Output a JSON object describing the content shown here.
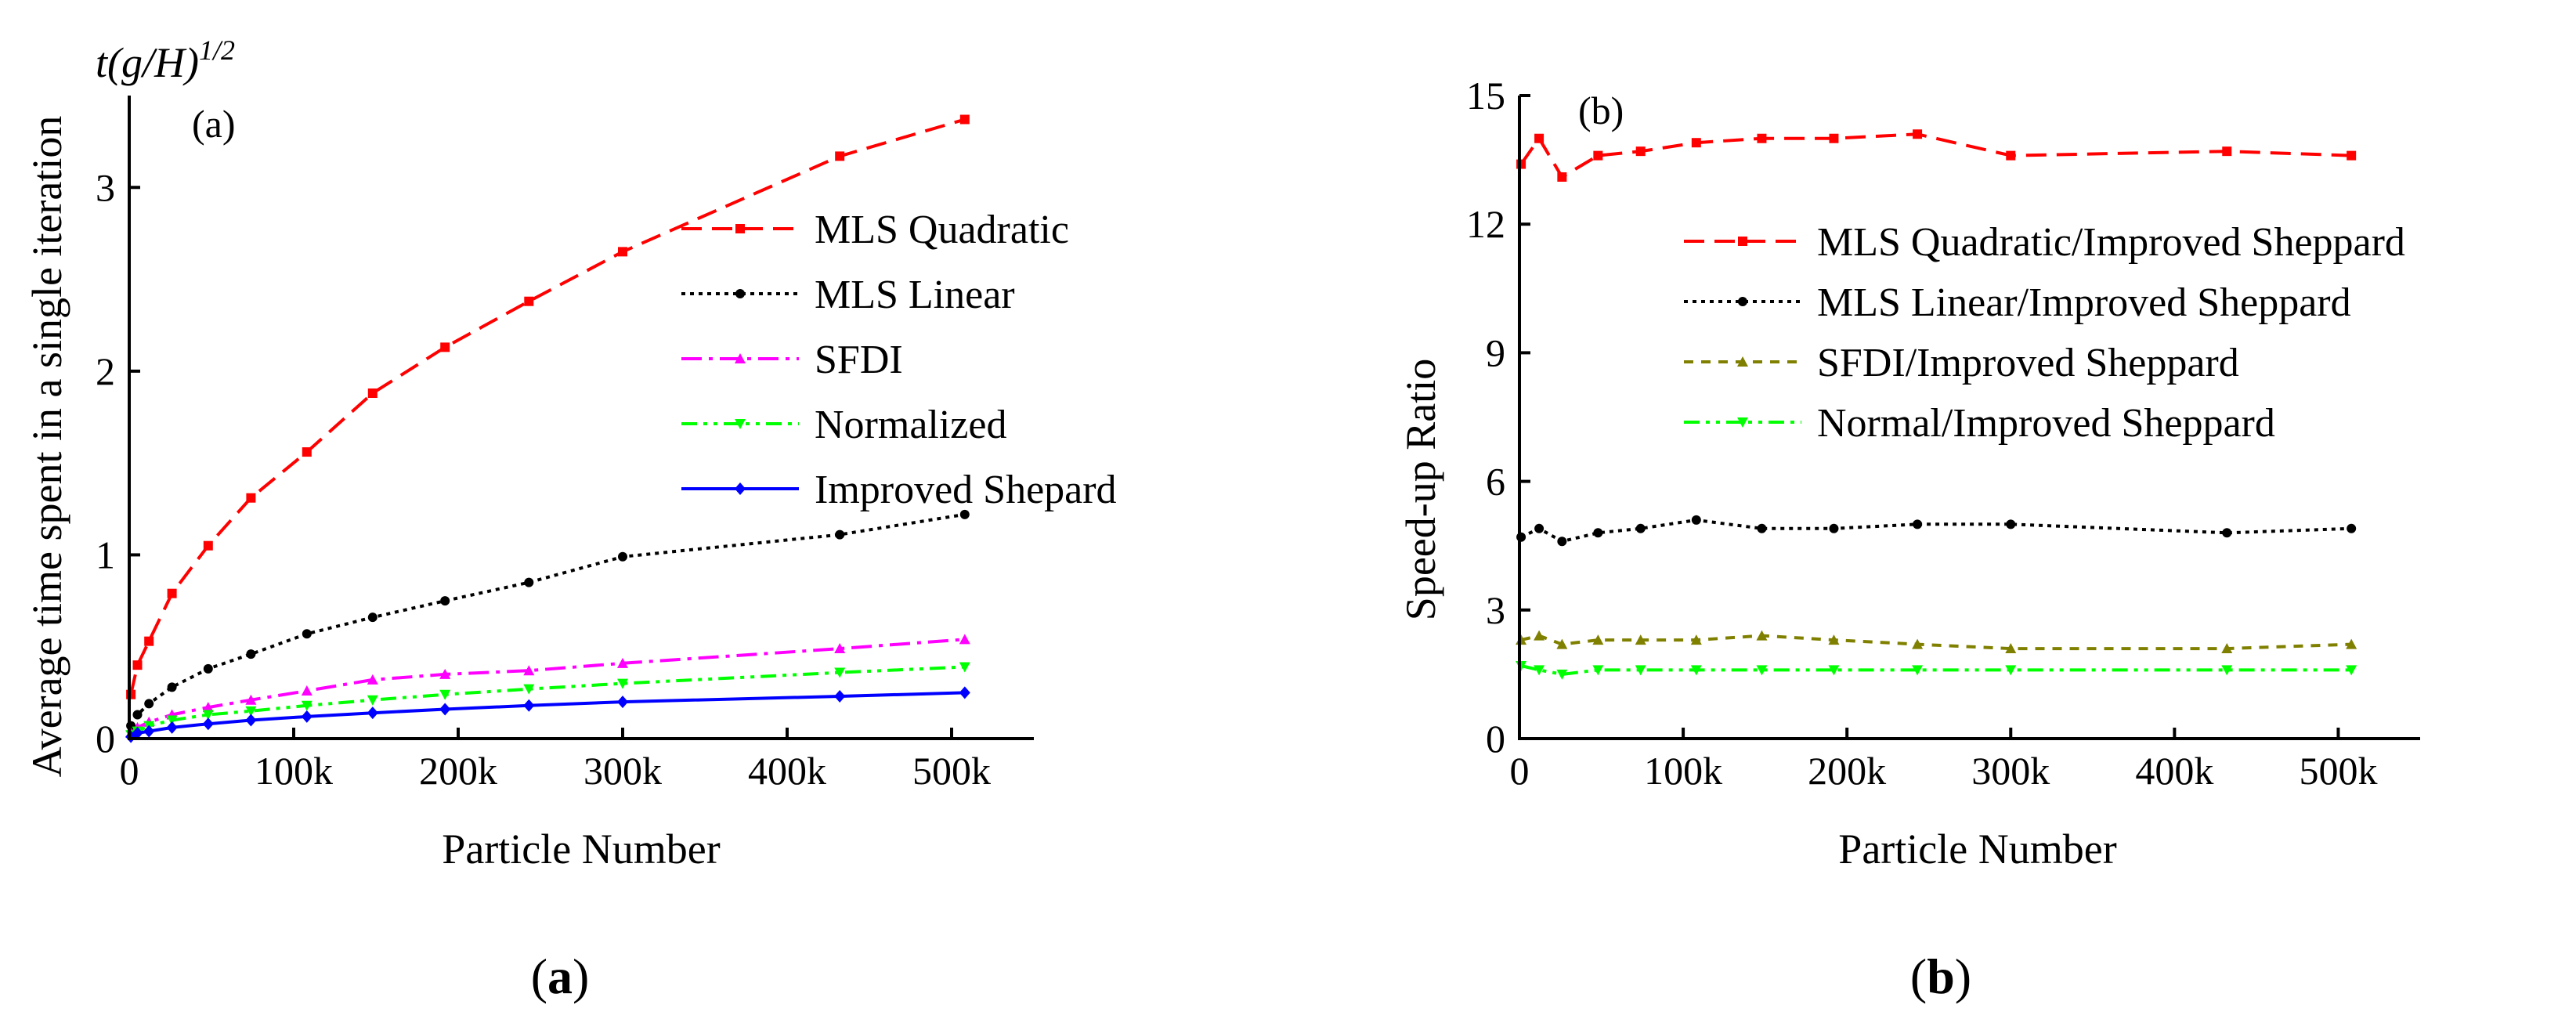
{
  "chart_data": [
    {
      "type": "line",
      "panel_tag": "(a)",
      "caption_letter": "a",
      "ylabel": "Average time spent in a single iteration",
      "ylabel_unit_main": "t(g/H)",
      "ylabel_unit_exp": "1/2",
      "xlabel": "Particle Number",
      "xlim": [
        0,
        550000
      ],
      "ylim": [
        0,
        3.5
      ],
      "xticks": [
        0,
        100000,
        200000,
        300000,
        400000,
        500000
      ],
      "xtick_labels": [
        "0",
        "100k",
        "200k",
        "300k",
        "400k",
        "500k"
      ],
      "yticks": [
        0,
        1,
        2,
        3
      ],
      "ytick_labels": [
        "0",
        "1",
        "2",
        "3"
      ],
      "legend_position": "center-right",
      "series": [
        {
          "name": "MLS Quadratic",
          "color": "#ff0000",
          "dash": "dashed",
          "marker": "square",
          "x": [
            1000,
            5000,
            12000,
            26000,
            48000,
            74000,
            108000,
            148000,
            192000,
            243000,
            300000,
            432000,
            508000
          ],
          "values": [
            0.24,
            0.4,
            0.53,
            0.79,
            1.05,
            1.31,
            1.56,
            1.88,
            2.13,
            2.38,
            2.65,
            3.17,
            3.37
          ]
        },
        {
          "name": "MLS Linear",
          "color": "#000000",
          "dash": "dotted",
          "marker": "circle",
          "x": [
            1000,
            5000,
            12000,
            26000,
            48000,
            74000,
            108000,
            148000,
            192000,
            243000,
            300000,
            432000,
            508000
          ],
          "values": [
            0.07,
            0.13,
            0.19,
            0.28,
            0.38,
            0.46,
            0.57,
            0.66,
            0.75,
            0.85,
            0.99,
            1.11,
            1.22
          ]
        },
        {
          "name": "SFDI",
          "color": "#ff00ff",
          "dash": "dashdot",
          "marker": "triangle",
          "x": [
            1000,
            5000,
            12000,
            26000,
            48000,
            74000,
            108000,
            148000,
            192000,
            243000,
            300000,
            432000,
            508000
          ],
          "values": [
            0.03,
            0.06,
            0.09,
            0.13,
            0.17,
            0.21,
            0.26,
            0.32,
            0.35,
            0.37,
            0.41,
            0.49,
            0.54
          ]
        },
        {
          "name": "Normalized",
          "color": "#00ff00",
          "dash": "dashdotdot",
          "marker": "triangle-down",
          "x": [
            1000,
            5000,
            12000,
            26000,
            48000,
            74000,
            108000,
            148000,
            192000,
            243000,
            300000,
            432000,
            508000
          ],
          "values": [
            0.02,
            0.04,
            0.07,
            0.1,
            0.13,
            0.15,
            0.18,
            0.21,
            0.24,
            0.27,
            0.3,
            0.36,
            0.39
          ]
        },
        {
          "name": "Improved Shepard",
          "color": "#0000ff",
          "dash": "solid",
          "marker": "diamond",
          "x": [
            1000,
            5000,
            12000,
            26000,
            48000,
            74000,
            108000,
            148000,
            192000,
            243000,
            300000,
            432000,
            508000
          ],
          "values": [
            0.01,
            0.03,
            0.04,
            0.06,
            0.08,
            0.1,
            0.12,
            0.14,
            0.16,
            0.18,
            0.2,
            0.23,
            0.25
          ]
        }
      ]
    },
    {
      "type": "line",
      "panel_tag": "(b)",
      "caption_letter": "b",
      "ylabel": "Speed-up Ratio",
      "xlabel": "Particle Number",
      "xlim": [
        0,
        550000
      ],
      "ylim": [
        0,
        15
      ],
      "xticks": [
        0,
        100000,
        200000,
        300000,
        400000,
        500000
      ],
      "xtick_labels": [
        "0",
        "100k",
        "200k",
        "300k",
        "400k",
        "500k"
      ],
      "yticks": [
        0,
        3,
        6,
        9,
        12,
        15
      ],
      "ytick_labels": [
        "0",
        "3",
        "6",
        "9",
        "12",
        "15"
      ],
      "legend_position": "upper-right",
      "series": [
        {
          "name": "MLS Quadratic/Improved Sheppard",
          "color": "#ff0000",
          "dash": "dashed",
          "marker": "square",
          "x": [
            1000,
            12000,
            26000,
            48000,
            74000,
            108000,
            148000,
            192000,
            243000,
            300000,
            432000,
            508000
          ],
          "values": [
            13.4,
            14.0,
            13.1,
            13.6,
            13.7,
            13.9,
            14.0,
            14.0,
            14.1,
            13.6,
            13.7,
            13.6
          ]
        },
        {
          "name": "MLS Linear/Improved Sheppard",
          "color": "#000000",
          "dash": "dotted",
          "marker": "circle",
          "x": [
            1000,
            12000,
            26000,
            48000,
            74000,
            108000,
            148000,
            192000,
            243000,
            300000,
            432000,
            508000
          ],
          "values": [
            4.7,
            4.9,
            4.6,
            4.8,
            4.9,
            5.1,
            4.9,
            4.9,
            5.0,
            5.0,
            4.8,
            4.9
          ]
        },
        {
          "name": "SFDI/Improved Sheppard",
          "color": "#808000",
          "dash": "dashed-short",
          "marker": "triangle",
          "x": [
            1000,
            12000,
            26000,
            48000,
            74000,
            108000,
            148000,
            192000,
            243000,
            300000,
            432000,
            508000
          ],
          "values": [
            2.3,
            2.4,
            2.2,
            2.3,
            2.3,
            2.3,
            2.4,
            2.3,
            2.2,
            2.1,
            2.1,
            2.2
          ]
        },
        {
          "name": "Normal/Improved Sheppard",
          "color": "#00ff00",
          "dash": "dashdotdot",
          "marker": "triangle-down",
          "x": [
            1000,
            12000,
            26000,
            48000,
            74000,
            108000,
            148000,
            192000,
            243000,
            300000,
            432000,
            508000
          ],
          "values": [
            1.7,
            1.6,
            1.5,
            1.6,
            1.6,
            1.6,
            1.6,
            1.6,
            1.6,
            1.6,
            1.6,
            1.6
          ]
        }
      ]
    }
  ]
}
